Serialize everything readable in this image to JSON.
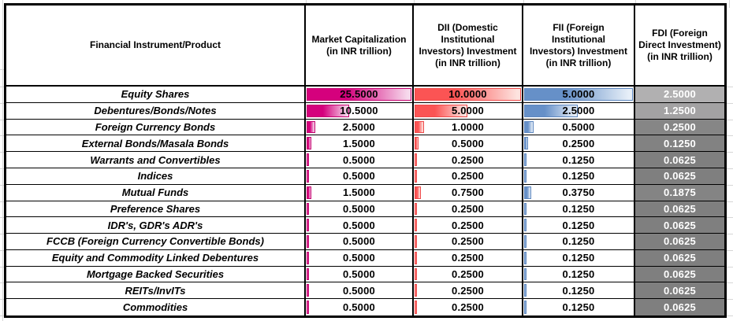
{
  "table": {
    "header": {
      "product": "Financial Instrument/Product",
      "market_cap": "Market Capitalization\n(in INR trillion)",
      "dii": "DII (Domestic\nInstitutional\nInvestors) Investment\n(in INR trillion)",
      "fii": "FII (Foreign\nInstitutional\nInvestors) Investment\n(in INR trillion)",
      "fdi": "FDI (Foreign\nDirect Investment)\n(in INR trillion)"
    },
    "rows": [
      {
        "product": "Equity Shares",
        "market_cap": "25.5000",
        "dii": "10.0000",
        "fii": "5.0000",
        "fdi": "2.5000",
        "fdi_bg": "#B1B0B1"
      },
      {
        "product": "Debentures/Bonds/Notes",
        "market_cap": "10.5000",
        "dii": "5.0000",
        "fii": "2.5000",
        "fdi": "1.2500",
        "fdi_bg": "#A3A2A3"
      },
      {
        "product": "Foreign Currency Bonds",
        "market_cap": "2.5000",
        "dii": "1.0000",
        "fii": "0.5000",
        "fdi": "0.2500",
        "fdi_bg": "#868686"
      },
      {
        "product": "External Bonds/Masala Bonds",
        "market_cap": "1.5000",
        "dii": "0.5000",
        "fii": "0.2500",
        "fdi": "0.1250",
        "fdi_bg": "#828282"
      },
      {
        "product": "Warrants and Convertibles",
        "market_cap": "0.5000",
        "dii": "0.2500",
        "fii": "0.1250",
        "fdi": "0.0625",
        "fdi_bg": "#7F7F7F"
      },
      {
        "product": "Indices",
        "market_cap": "0.5000",
        "dii": "0.2500",
        "fii": "0.1250",
        "fdi": "0.0625",
        "fdi_bg": "#7F7F7F"
      },
      {
        "product": "Mutual Funds",
        "market_cap": "1.5000",
        "dii": "0.7500",
        "fii": "0.3750",
        "fdi": "0.1875",
        "fdi_bg": "#848484"
      },
      {
        "product": "Preference Shares",
        "market_cap": "0.5000",
        "dii": "0.2500",
        "fii": "0.1250",
        "fdi": "0.0625",
        "fdi_bg": "#7F7F7F"
      },
      {
        "product": "IDR's, GDR's ADR's",
        "market_cap": "0.5000",
        "dii": "0.2500",
        "fii": "0.1250",
        "fdi": "0.0625",
        "fdi_bg": "#7F7F7F"
      },
      {
        "product": "FCCB (Foreign Currency Convertible Bonds)",
        "market_cap": "0.5000",
        "dii": "0.2500",
        "fii": "0.1250",
        "fdi": "0.0625",
        "fdi_bg": "#7F7F7F"
      },
      {
        "product": "Equity and Commodity Linked Debentures",
        "market_cap": "0.5000",
        "dii": "0.2500",
        "fii": "0.1250",
        "fdi": "0.0625",
        "fdi_bg": "#7F7F7F"
      },
      {
        "product": "Mortgage Backed Securities",
        "market_cap": "0.5000",
        "dii": "0.2500",
        "fii": "0.1250",
        "fdi": "0.0625",
        "fdi_bg": "#7F7F7F"
      },
      {
        "product": "REITs/InvITs",
        "market_cap": "0.5000",
        "dii": "0.2500",
        "fii": "0.1250",
        "fdi": "0.0625",
        "fdi_bg": "#7F7F7F"
      },
      {
        "product": "Commodities",
        "market_cap": "0.5000",
        "dii": "0.2500",
        "fii": "0.1250",
        "fdi": "0.0625",
        "fdi_bg": "#7F7F7F"
      }
    ],
    "bars": {
      "market_cap": {
        "max": 25.5,
        "color": "#D5017D",
        "fade": "#F6D9EC",
        "border": "#C4006F"
      },
      "dii": {
        "max": 10.0,
        "color": "#FB5454",
        "fade": "#FDE3DF",
        "border": "#EF4A4A"
      },
      "fii": {
        "max": 5.0,
        "color": "#6690C8",
        "fade": "#E7EFF8",
        "border": "#5D87BF"
      }
    },
    "colors": {
      "grid_border": "#000000",
      "fdi_text": "#FFFFFF",
      "sheet_gridline": "#D6D6D6"
    }
  }
}
